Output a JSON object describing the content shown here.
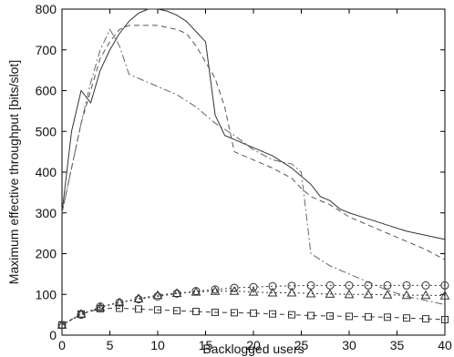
{
  "chart_data": {
    "type": "line",
    "title": "",
    "xlabel": "Backlogged users",
    "ylabel": "Maximum effective throughput  [bits/slot]",
    "xlim": [
      0,
      40
    ],
    "ylim": [
      0,
      800
    ],
    "x_ticks": [
      0,
      5,
      10,
      15,
      20,
      25,
      30,
      35,
      40
    ],
    "y_ticks": [
      0,
      100,
      200,
      300,
      400,
      500,
      600,
      700,
      800
    ],
    "grid": false,
    "legend": "none",
    "series": [
      {
        "style": "solid",
        "color": "#333333",
        "points": [
          [
            0,
            300
          ],
          [
            1,
            500
          ],
          [
            2,
            600
          ],
          [
            3,
            570
          ],
          [
            4,
            650
          ],
          [
            5,
            700
          ],
          [
            6,
            740
          ],
          [
            7,
            770
          ],
          [
            8,
            790
          ],
          [
            9,
            800
          ],
          [
            10,
            800
          ],
          [
            11,
            795
          ],
          [
            12,
            785
          ],
          [
            13,
            770
          ],
          [
            14,
            745
          ],
          [
            15,
            720
          ],
          [
            16,
            540
          ],
          [
            17,
            490
          ],
          [
            18,
            480
          ],
          [
            20,
            460
          ],
          [
            22,
            440
          ],
          [
            24,
            410
          ],
          [
            25,
            390
          ],
          [
            26,
            370
          ],
          [
            27,
            340
          ],
          [
            28,
            330
          ],
          [
            29,
            310
          ],
          [
            30,
            300
          ],
          [
            32,
            285
          ],
          [
            34,
            270
          ],
          [
            36,
            255
          ],
          [
            38,
            245
          ],
          [
            40,
            235
          ]
        ]
      },
      {
        "style": "dashed",
        "color": "#555555",
        "points": [
          [
            0,
            300
          ],
          [
            2,
            520
          ],
          [
            3,
            600
          ],
          [
            4,
            680
          ],
          [
            5,
            720
          ],
          [
            6,
            750
          ],
          [
            7,
            760
          ],
          [
            8,
            760
          ],
          [
            10,
            760
          ],
          [
            12,
            750
          ],
          [
            13,
            740
          ],
          [
            14,
            710
          ],
          [
            15,
            670
          ],
          [
            16,
            630
          ],
          [
            17,
            560
          ],
          [
            18,
            450
          ],
          [
            19,
            440
          ],
          [
            20,
            430
          ],
          [
            22,
            410
          ],
          [
            24,
            385
          ],
          [
            25,
            360
          ],
          [
            26,
            340
          ],
          [
            28,
            320
          ],
          [
            30,
            290
          ],
          [
            32,
            270
          ],
          [
            34,
            250
          ],
          [
            36,
            230
          ],
          [
            38,
            210
          ],
          [
            40,
            185
          ]
        ]
      },
      {
        "style": "dash-dot",
        "color": "#666666",
        "points": [
          [
            0,
            300
          ],
          [
            2,
            520
          ],
          [
            3,
            620
          ],
          [
            4,
            700
          ],
          [
            5,
            750
          ],
          [
            6,
            710
          ],
          [
            7,
            640
          ],
          [
            8,
            630
          ],
          [
            10,
            610
          ],
          [
            12,
            590
          ],
          [
            14,
            560
          ],
          [
            16,
            520
          ],
          [
            18,
            490
          ],
          [
            20,
            455
          ],
          [
            22,
            430
          ],
          [
            24,
            420
          ],
          [
            25,
            400
          ],
          [
            26,
            200
          ],
          [
            28,
            170
          ],
          [
            30,
            150
          ],
          [
            32,
            130
          ],
          [
            34,
            110
          ],
          [
            36,
            95
          ],
          [
            38,
            85
          ],
          [
            40,
            75
          ]
        ]
      },
      {
        "style": "dotted-circle",
        "color": "#333333",
        "marker": "circle",
        "points": [
          [
            0,
            25
          ],
          [
            2,
            50
          ],
          [
            4,
            70
          ],
          [
            6,
            80
          ],
          [
            8,
            88
          ],
          [
            10,
            95
          ],
          [
            12,
            102
          ],
          [
            14,
            108
          ],
          [
            16,
            112
          ],
          [
            18,
            116
          ],
          [
            20,
            118
          ],
          [
            22,
            120
          ],
          [
            24,
            121
          ],
          [
            26,
            122
          ],
          [
            28,
            122
          ],
          [
            30,
            122
          ],
          [
            32,
            122
          ],
          [
            34,
            122
          ],
          [
            36,
            122
          ],
          [
            38,
            122
          ],
          [
            40,
            122
          ]
        ]
      },
      {
        "style": "dotted-triangle",
        "color": "#333333",
        "marker": "triangle",
        "points": [
          [
            0,
            25
          ],
          [
            2,
            52
          ],
          [
            4,
            68
          ],
          [
            6,
            80
          ],
          [
            8,
            90
          ],
          [
            10,
            98
          ],
          [
            12,
            103
          ],
          [
            14,
            106
          ],
          [
            16,
            108
          ],
          [
            18,
            108
          ],
          [
            20,
            106
          ],
          [
            22,
            104
          ],
          [
            24,
            104
          ],
          [
            26,
            102
          ],
          [
            28,
            101
          ],
          [
            30,
            100
          ],
          [
            32,
            100
          ],
          [
            34,
            99
          ],
          [
            36,
            98
          ],
          [
            38,
            98
          ],
          [
            40,
            97
          ]
        ]
      },
      {
        "style": "dashed-square",
        "color": "#333333",
        "marker": "square",
        "points": [
          [
            0,
            25
          ],
          [
            2,
            52
          ],
          [
            4,
            65
          ],
          [
            6,
            66
          ],
          [
            8,
            64
          ],
          [
            10,
            62
          ],
          [
            12,
            60
          ],
          [
            14,
            58
          ],
          [
            16,
            56
          ],
          [
            18,
            55
          ],
          [
            20,
            54
          ],
          [
            22,
            52
          ],
          [
            24,
            50
          ],
          [
            26,
            48
          ],
          [
            28,
            47
          ],
          [
            30,
            46
          ],
          [
            32,
            45
          ],
          [
            34,
            44
          ],
          [
            36,
            42
          ],
          [
            38,
            40
          ],
          [
            40,
            38
          ]
        ]
      }
    ]
  }
}
